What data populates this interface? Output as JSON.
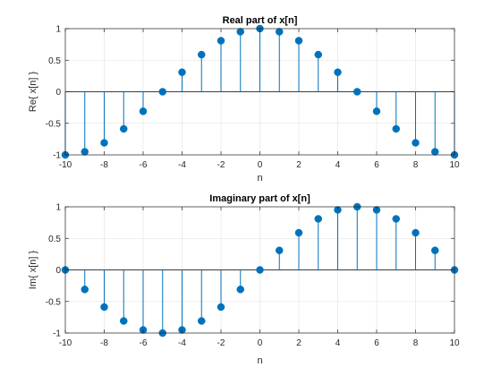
{
  "chart_data": [
    {
      "type": "stem",
      "title": "Real part of x[n]",
      "xlabel": "n",
      "ylabel": "Re{ x[n] }",
      "xlim": [
        -10,
        10
      ],
      "ylim": [
        -1,
        1
      ],
      "xticks": [
        -10,
        -8,
        -6,
        -4,
        -2,
        0,
        2,
        4,
        6,
        8,
        10
      ],
      "yticks": [
        -1,
        -0.5,
        0,
        0.5,
        1
      ],
      "grid": true,
      "color": "#0072BD",
      "series": [
        {
          "x": [
            -10,
            -9,
            -8,
            -7,
            -6,
            -5,
            -4,
            -3,
            -2,
            -1,
            0,
            1,
            2,
            3,
            4,
            5,
            6,
            7,
            8,
            9,
            10
          ],
          "values": [
            -1,
            -0.951,
            -0.809,
            -0.588,
            -0.309,
            0,
            0.309,
            0.588,
            0.809,
            0.951,
            1,
            0.951,
            0.809,
            0.588,
            0.309,
            0,
            -0.309,
            -0.588,
            -0.809,
            -0.951,
            -1
          ]
        }
      ]
    },
    {
      "type": "stem",
      "title": "Imaginary part of x[n]",
      "xlabel": "n",
      "ylabel": "Im{ x[n] }",
      "xlim": [
        -10,
        10
      ],
      "ylim": [
        -1,
        1
      ],
      "xticks": [
        -10,
        -8,
        -6,
        -4,
        -2,
        0,
        2,
        4,
        6,
        8,
        10
      ],
      "yticks": [
        -1,
        -0.5,
        0,
        0.5,
        1
      ],
      "grid": true,
      "color": "#0072BD",
      "series": [
        {
          "x": [
            -10,
            -9,
            -8,
            -7,
            -6,
            -5,
            -4,
            -3,
            -2,
            -1,
            0,
            1,
            2,
            3,
            4,
            5,
            6,
            7,
            8,
            9,
            10
          ],
          "values": [
            0,
            -0.309,
            -0.588,
            -0.809,
            -0.951,
            -1,
            -0.951,
            -0.809,
            -0.588,
            -0.309,
            0,
            0.309,
            0.588,
            0.809,
            0.951,
            1,
            0.951,
            0.809,
            0.588,
            0.309,
            0
          ]
        }
      ]
    }
  ]
}
